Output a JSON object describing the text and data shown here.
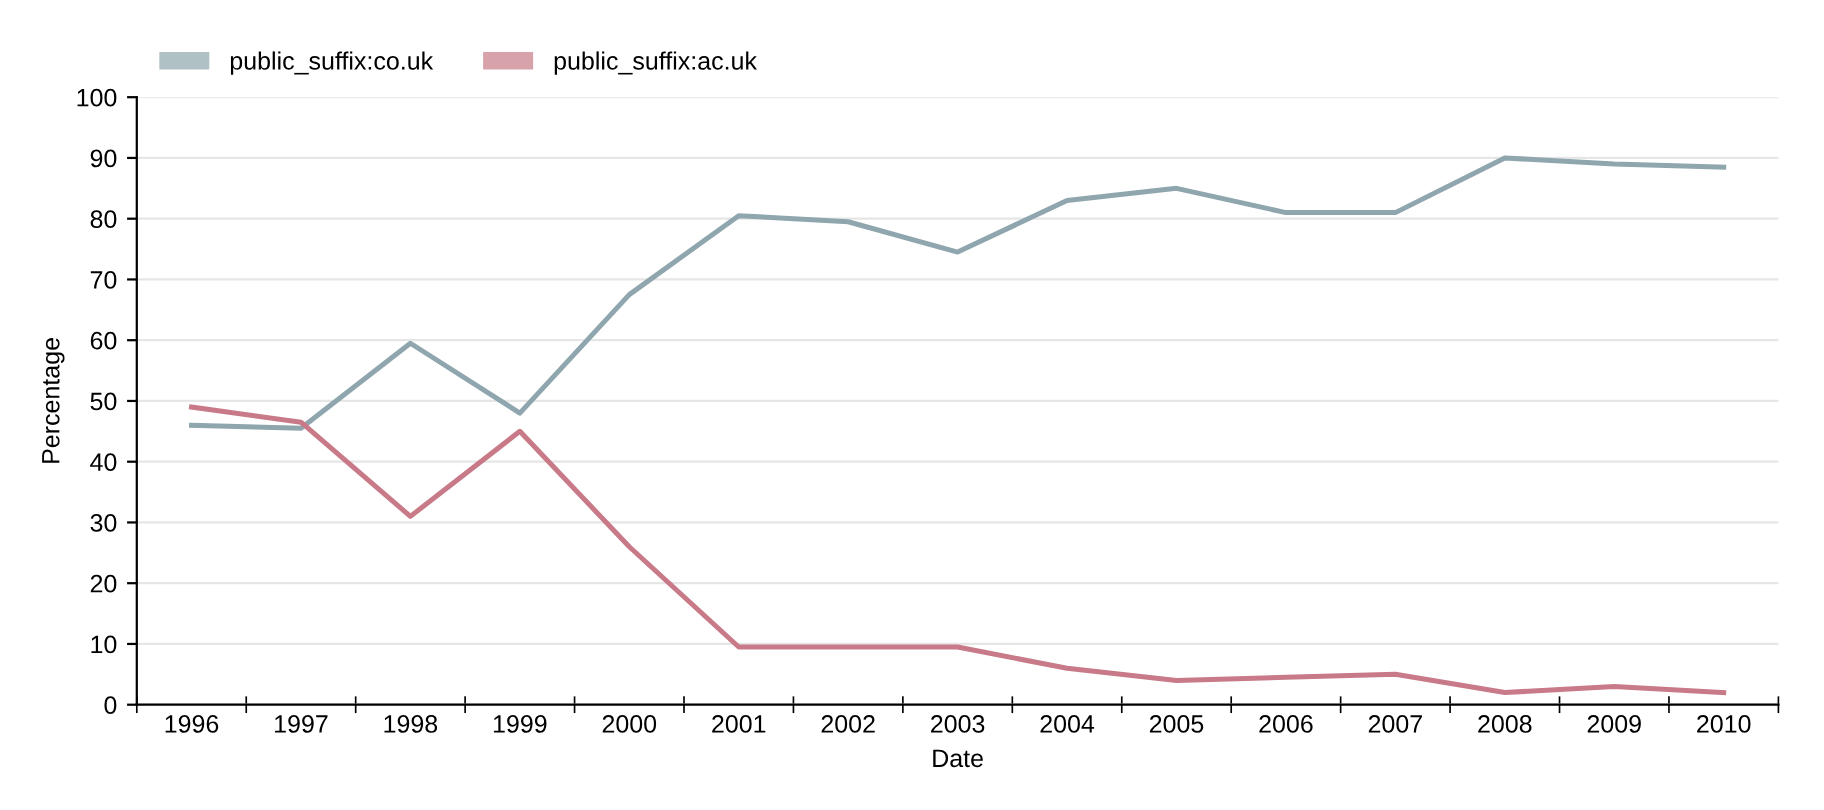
{
  "chart_data": {
    "type": "line",
    "xlabel": "Date",
    "ylabel": "Percentage",
    "categories": [
      "1996",
      "1997",
      "1998",
      "1999",
      "2000",
      "2001",
      "2002",
      "2003",
      "2004",
      "2005",
      "2006",
      "2007",
      "2008",
      "2009",
      "2010"
    ],
    "series": [
      {
        "name": "public_suffix:co.uk",
        "color": "#8fa6ae",
        "values": [
          46,
          45.5,
          59.5,
          48,
          67.5,
          80.5,
          79.5,
          74.5,
          83,
          85,
          81,
          81,
          90,
          89,
          88.5
        ]
      },
      {
        "name": "public_suffix:ac.uk",
        "color": "#c87a88",
        "values": [
          49,
          46.5,
          31,
          45,
          26,
          9.5,
          9.5,
          9.5,
          6,
          4,
          4.5,
          5,
          2,
          3,
          2
        ]
      }
    ],
    "ylim": [
      0,
      100
    ],
    "yticks": [
      0,
      10,
      20,
      30,
      40,
      50,
      60,
      70,
      80,
      90,
      100
    ],
    "grid": "y",
    "legend": "top left",
    "marker": "none",
    "line_style": "solid"
  }
}
